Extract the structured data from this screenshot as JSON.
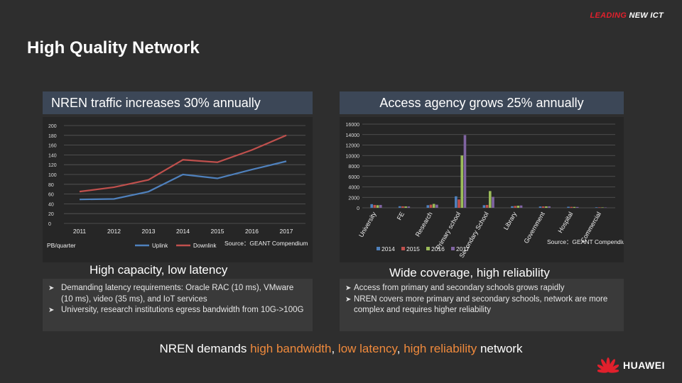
{
  "brand_tag": {
    "part1": "LEADING",
    "part2": "NEW ICT"
  },
  "page_title": "High Quality Network",
  "left_panel": {
    "header": "NREN traffic increases 30% annually",
    "subtitle": "High capacity, low latency",
    "bullets": [
      "Demanding latency requirements: Oracle RAC (10 ms), VMware (10 ms), video (35 ms), and IoT services",
      "University, research institutions egress bandwidth from 10G->100G"
    ]
  },
  "right_panel": {
    "header": "Access agency grows 25% annually",
    "subtitle": "Wide coverage, high reliability",
    "bullets": [
      "Access from primary and secondary schools grows rapidly",
      "NREN covers more primary and secondary schools, network are more complex and requires higher reliability"
    ]
  },
  "tagline": {
    "pre": "NREN demands ",
    "hl1": "high bandwidth",
    "mid1": ", ",
    "hl2": "low latency",
    "mid2": ", ",
    "hl3": "high reliability",
    "post": " network"
  },
  "logo": {
    "word": "HUAWEI"
  },
  "chart_data": [
    {
      "type": "line",
      "x": [
        "2011",
        "2012",
        "2013",
        "2014",
        "2015",
        "2016",
        "2017"
      ],
      "series": [
        {
          "name": "Uplink",
          "values": [
            49,
            50,
            65,
            100,
            92,
            110,
            127
          ],
          "color": "#4f81bd"
        },
        {
          "name": "Downlink",
          "values": [
            65,
            74,
            89,
            130,
            125,
            150,
            180
          ],
          "color": "#c0504d"
        }
      ],
      "ylim": [
        0,
        200
      ],
      "yticks": [
        "0",
        "20",
        "40",
        "60",
        "80",
        "100",
        "120",
        "140",
        "160",
        "180",
        "200"
      ],
      "ylabel": "PB/quarter",
      "source": "Source：GEANT Compendium",
      "grid": true,
      "legend": "bottom"
    },
    {
      "type": "bar",
      "categories": [
        "University",
        "FE",
        "Research",
        "Primary school",
        "Secondary School",
        "Library",
        "Government",
        "Hospital",
        "Commercial"
      ],
      "series": [
        {
          "name": "2014",
          "values": [
            700,
            300,
            500,
            2200,
            500,
            300,
            250,
            200,
            100
          ],
          "color": "#4f81bd"
        },
        {
          "name": "2015",
          "values": [
            550,
            280,
            600,
            1600,
            550,
            350,
            260,
            180,
            90
          ],
          "color": "#c0504d"
        },
        {
          "name": "2016",
          "values": [
            500,
            260,
            750,
            10000,
            3200,
            400,
            270,
            170,
            80
          ],
          "color": "#9bbb59"
        },
        {
          "name": "2017",
          "values": [
            550,
            250,
            600,
            13900,
            2100,
            450,
            280,
            160,
            70
          ],
          "color": "#8064a2"
        }
      ],
      "ylim": [
        0,
        16000
      ],
      "yticks": [
        "0",
        "2000",
        "4000",
        "6000",
        "8000",
        "10000",
        "12000",
        "14000",
        "16000"
      ],
      "source": "Source：GEANT Compendium",
      "grid": true,
      "legend": "bottom"
    }
  ]
}
